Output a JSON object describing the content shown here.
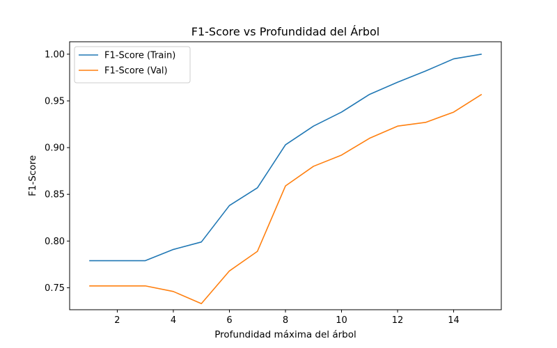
{
  "chart_data": {
    "type": "line",
    "title": "F1-Score vs Profundidad del Árbol",
    "xlabel": "Profundidad máxima del árbol",
    "ylabel": "F1-Score",
    "x": [
      1,
      2,
      3,
      4,
      5,
      6,
      7,
      8,
      9,
      10,
      11,
      12,
      13,
      14,
      15
    ],
    "xlim": [
      0.3,
      15.7
    ],
    "ylim": [
      0.7265,
      1.0133
    ],
    "xticks": [
      2,
      4,
      6,
      8,
      10,
      12,
      14
    ],
    "yticks": [
      0.75,
      0.8,
      0.85,
      0.9,
      0.95,
      1.0
    ],
    "ytick_labels": [
      "0.75",
      "0.80",
      "0.85",
      "0.90",
      "0.95",
      "1.00"
    ],
    "grid": false,
    "legend_position": "top-left",
    "series": [
      {
        "name": "F1-Score (Train)",
        "color": "#1f77b4",
        "values": [
          0.779,
          0.779,
          0.779,
          0.791,
          0.799,
          0.838,
          0.857,
          0.903,
          0.923,
          0.938,
          0.957,
          0.97,
          0.982,
          0.995,
          1.0
        ]
      },
      {
        "name": "F1-Score (Val)",
        "color": "#ff7f0e",
        "values": [
          0.752,
          0.752,
          0.752,
          0.746,
          0.733,
          0.768,
          0.789,
          0.859,
          0.88,
          0.892,
          0.91,
          0.923,
          0.927,
          0.938,
          0.957
        ]
      }
    ]
  }
}
